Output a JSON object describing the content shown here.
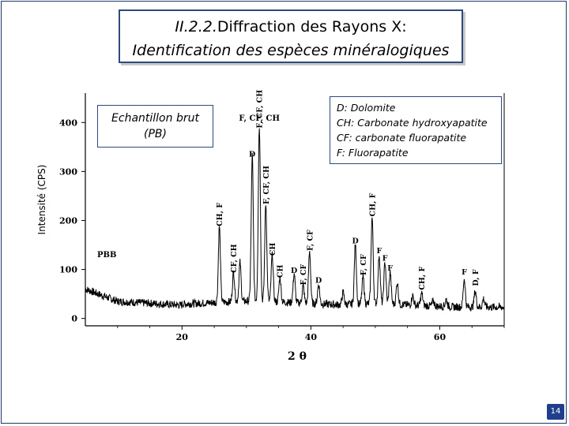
{
  "slide": {
    "title_number": "II.2.2.",
    "title_rest": "Diffraction des Rayons X:",
    "subtitle": "Identification des espèces minéralogiques",
    "sample_label_line1": "Echantillon brut",
    "sample_label_line2": "(PB)",
    "legend": [
      "D: Dolomite",
      "CH: Carbonate hydroxyapatite",
      "CF: carbonate fluorapatite",
      "F: Fluorapatite"
    ],
    "page_number": "14"
  },
  "chart_data": {
    "type": "line",
    "title": "",
    "xlabel": "2 θ",
    "ylabel": "Intensité (CPS)",
    "xlim": [
      5,
      70
    ],
    "ylim": [
      -15,
      460
    ],
    "xticks": [
      20,
      40,
      60
    ],
    "yticks": [
      0,
      100,
      200,
      300,
      400
    ],
    "grid": false,
    "series_name": "PBB",
    "peaks": [
      {
        "x": 25.8,
        "y": 180,
        "label": "CH, F"
      },
      {
        "x": 28.0,
        "y": 85,
        "label": "CF, CH"
      },
      {
        "x": 29.0,
        "y": 105
      },
      {
        "x": 30.9,
        "y": 322,
        "label": "D"
      },
      {
        "x": 32.0,
        "y": 380,
        "label": "F, CF, CH"
      },
      {
        "x": 33.0,
        "y": 225,
        "label": "F, CF, CH"
      },
      {
        "x": 34.0,
        "y": 120,
        "label": "CH"
      },
      {
        "x": 35.2,
        "y": 75,
        "label": "CH"
      },
      {
        "x": 37.4,
        "y": 85,
        "label": "D"
      },
      {
        "x": 38.8,
        "y": 60,
        "label": "F, CF"
      },
      {
        "x": 39.8,
        "y": 130,
        "label": "F, CF"
      },
      {
        "x": 41.2,
        "y": 65,
        "label": "D"
      },
      {
        "x": 45.0,
        "y": 50
      },
      {
        "x": 46.9,
        "y": 145,
        "label": "D"
      },
      {
        "x": 48.1,
        "y": 80,
        "label": "F, CF"
      },
      {
        "x": 49.5,
        "y": 200,
        "label": "CH, F"
      },
      {
        "x": 50.6,
        "y": 125,
        "label": "F"
      },
      {
        "x": 51.5,
        "y": 110,
        "label": "F"
      },
      {
        "x": 52.3,
        "y": 90,
        "label": "F"
      },
      {
        "x": 53.4,
        "y": 70
      },
      {
        "x": 55.8,
        "y": 45
      },
      {
        "x": 57.2,
        "y": 50,
        "label": "CH, F"
      },
      {
        "x": 59.0,
        "y": 35
      },
      {
        "x": 61.0,
        "y": 40
      },
      {
        "x": 63.8,
        "y": 82,
        "label": "F"
      },
      {
        "x": 65.5,
        "y": 58,
        "label": "D, F"
      },
      {
        "x": 66.8,
        "y": 42
      }
    ],
    "top_label": "F, CF, CH",
    "colors": {
      "line": "#000000",
      "frame": "#2e4a7a",
      "page_badge": "#1f3f8c"
    }
  }
}
